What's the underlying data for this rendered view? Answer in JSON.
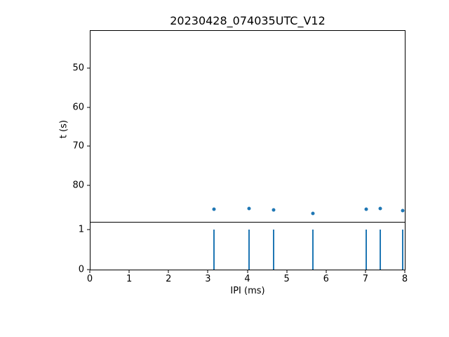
{
  "figure": {
    "title": "20230428_074035UTC_V12",
    "background": "#ffffff",
    "accent_color": "#1f77b4"
  },
  "chart_data": [
    {
      "type": "scatter",
      "name": "time-vs-ipi-scatter",
      "title": "20230428_074035UTC_V12",
      "xlabel": "",
      "ylabel": "t (s)",
      "x": [
        3.16,
        4.04,
        4.67,
        5.66,
        7.02,
        7.37,
        7.95
      ],
      "y": [
        86.0,
        85.8,
        86.2,
        87.2,
        86.0,
        85.8,
        86.4
      ],
      "xlim": [
        0,
        8
      ],
      "ylim": [
        89.3,
        40.3
      ],
      "y_inverted": true,
      "yticks": [
        50,
        60,
        70,
        80
      ],
      "grid": false,
      "legend": false,
      "marker_color": "#1f77b4"
    },
    {
      "type": "stem",
      "name": "ipi-pulse-train",
      "title": "",
      "xlabel": "IPI (ms)",
      "ylabel": "",
      "x": [
        3.16,
        4.04,
        4.67,
        5.66,
        7.02,
        7.37,
        7.95
      ],
      "values": [
        1,
        1,
        1,
        1,
        1,
        1,
        1
      ],
      "xlim": [
        0,
        8
      ],
      "ylim": [
        0,
        1.17
      ],
      "xticks": [
        0,
        1,
        2,
        3,
        4,
        5,
        6,
        7,
        8
      ],
      "yticks": [
        0,
        1
      ],
      "grid": false,
      "legend": false,
      "line_color": "#1f77b4"
    }
  ]
}
